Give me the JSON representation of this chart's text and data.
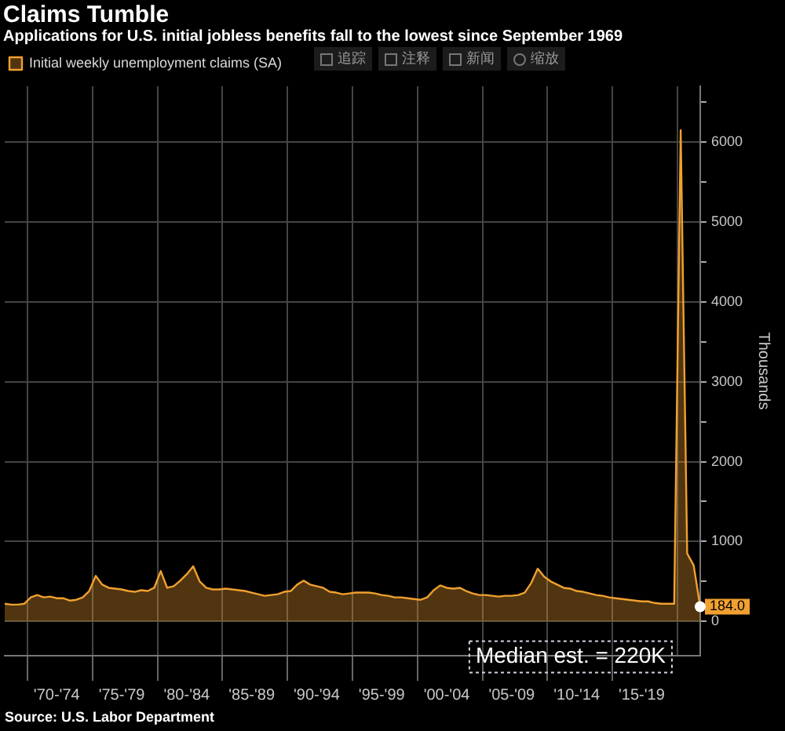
{
  "chart_data": {
    "type": "area",
    "title": "Claims Tumble",
    "subtitle": "Applications for U.S. initial jobless benefits fall to the lowest since September 1969",
    "ylabel": "Thousands",
    "legend": "top left",
    "grid": true,
    "marker": "none",
    "categories": [
      null,
      null,
      null,
      null,
      null,
      null,
      null,
      null,
      "'70-'74",
      null,
      null,
      null,
      null,
      null,
      null,
      null,
      null,
      null,
      "'75-'79",
      null,
      null,
      null,
      null,
      null,
      null,
      null,
      null,
      null,
      "'80-'84",
      null,
      null,
      null,
      null,
      null,
      null,
      null,
      null,
      null,
      "'85-'89",
      null,
      null,
      null,
      null,
      null,
      null,
      null,
      null,
      null,
      "'90-'94",
      null,
      null,
      null,
      null,
      null,
      null,
      null,
      null,
      null,
      "'95-'99",
      null,
      null,
      null,
      null,
      null,
      null,
      null,
      null,
      null,
      "'00-'04",
      null,
      null,
      null,
      null,
      null,
      null,
      null,
      null,
      null,
      "'05-'09",
      null,
      null,
      null,
      null,
      null,
      null,
      null,
      null,
      null,
      "'10-'14",
      null,
      null,
      null,
      null,
      null,
      null,
      null,
      null,
      null,
      "'15-'19",
      null,
      null,
      null,
      null,
      null,
      null,
      null,
      null,
      null
    ],
    "ylim": [
      -430,
      6700
    ],
    "yticks": [
      0,
      {
        "value": 500,
        "label": null
      },
      1000,
      {
        "value": 1500,
        "label": null
      },
      2000,
      {
        "value": 2500,
        "label": null
      },
      3000,
      {
        "value": 3500,
        "label": null
      },
      4000,
      {
        "value": 4500,
        "label": null
      },
      5000,
      {
        "value": 5500,
        "label": null
      },
      6000,
      {
        "value": 6500,
        "label": null
      }
    ],
    "series": [
      {
        "name": "Initial weekly unemployment claims (SA)",
        "color": "#f0a030",
        "values": [
          220,
          210,
          210,
          220,
          300,
          330,
          300,
          310,
          290,
          290,
          260,
          270,
          300,
          380,
          570,
          460,
          420,
          410,
          400,
          380,
          370,
          390,
          380,
          420,
          630,
          420,
          440,
          510,
          590,
          690,
          500,
          420,
          400,
          400,
          410,
          400,
          390,
          380,
          360,
          340,
          320,
          330,
          340,
          370,
          380,
          460,
          510,
          460,
          440,
          420,
          370,
          360,
          340,
          350,
          360,
          360,
          360,
          350,
          330,
          320,
          300,
          300,
          290,
          280,
          270,
          300,
          390,
          450,
          420,
          410,
          420,
          380,
          350,
          330,
          330,
          320,
          310,
          320,
          320,
          330,
          360,
          480,
          660,
          560,
          500,
          460,
          420,
          410,
          380,
          370,
          350,
          330,
          320,
          300,
          290,
          280,
          270,
          260,
          250,
          250,
          230,
          220,
          220,
          220,
          6150,
          850,
          700,
          184
        ]
      }
    ],
    "annotations": [
      "184.0",
      "Median est. = 220K",
      "Source: U.S. Labor Department",
      "追踪",
      "注释",
      "新闻",
      "缩放"
    ]
  }
}
